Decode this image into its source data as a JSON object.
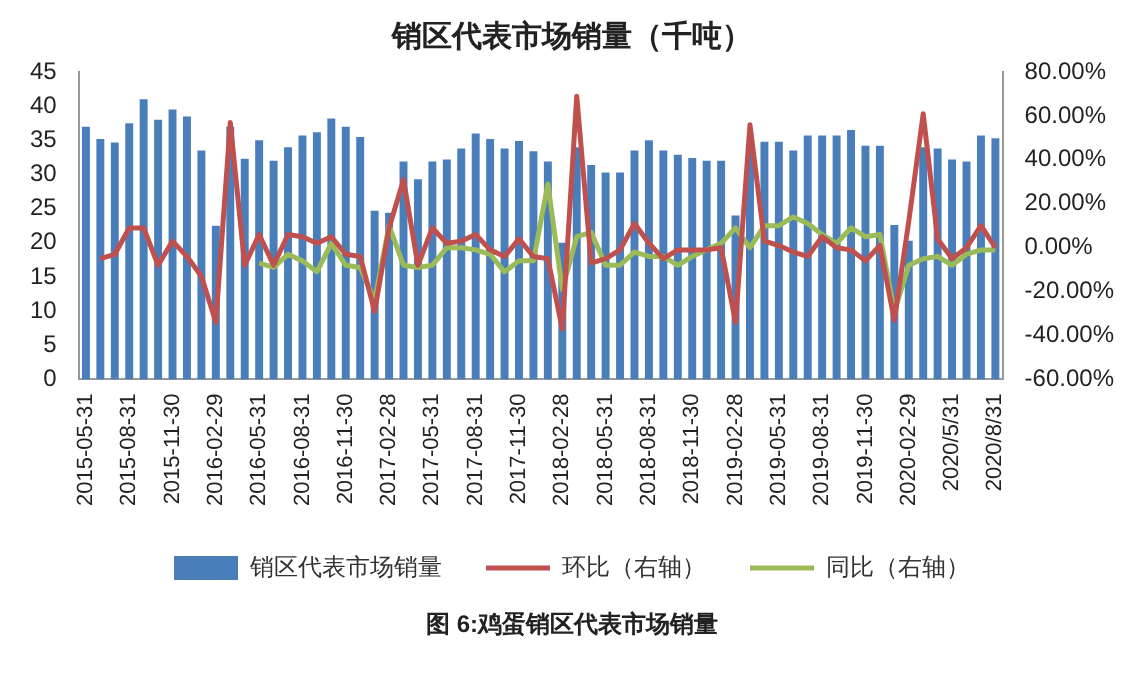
{
  "chart_data": {
    "type": "bar",
    "title": "销区代表市场销量（千吨）",
    "categories": [
      "2015-05-31",
      null,
      null,
      "2015-08-31",
      null,
      null,
      "2015-11-30",
      null,
      null,
      "2016-02-29",
      null,
      null,
      "2016-05-31",
      null,
      null,
      "2016-08-31",
      null,
      null,
      "2016-11-30",
      null,
      null,
      "2017-02-28",
      null,
      null,
      "2017-05-31",
      null,
      null,
      "2017-08-31",
      null,
      null,
      "2017-11-30",
      null,
      null,
      "2018-02-28",
      null,
      null,
      "2018-05-31",
      null,
      null,
      "2018-08-31",
      null,
      null,
      "2018-11-30",
      null,
      null,
      "2019-02-28",
      null,
      null,
      "2019-05-31",
      null,
      null,
      "2019-08-31",
      null,
      null,
      "2019-11-30",
      null,
      null,
      "2020-02-29",
      null,
      null,
      "2020/5/31",
      null,
      null,
      "2020/8/31"
    ],
    "series": [
      {
        "name": "销区代表市场销量",
        "color": "#4a7ebb",
        "values": [
          37,
          35.2,
          34.7,
          37.5,
          41,
          38,
          39.5,
          38.5,
          33.5,
          22.5,
          37,
          32.3,
          35,
          32,
          34,
          35.7,
          36.2,
          38.2,
          37,
          35.5,
          24.7,
          24.4,
          31.9,
          29.3,
          31.9,
          32.2,
          33.8,
          36,
          35.2,
          33.8,
          34.9,
          33.4,
          31.9,
          20,
          34,
          31.4,
          30.3,
          30.3,
          33.5,
          35,
          33.5,
          32.9,
          32.4,
          32,
          32,
          24,
          34,
          34.8,
          34.8,
          33.5,
          35.7,
          35.7,
          35.7,
          36.5,
          34.2,
          34.2,
          22.6,
          20.3,
          34,
          33.8,
          32.2,
          31.9,
          35.7,
          35.3
        ]
      },
      {
        "name": "环比（右轴）",
        "type": "line",
        "axis": "y2",
        "color": "#c0504d",
        "values": [
          null,
          -5,
          -3,
          9,
          9,
          -8,
          3,
          -4,
          -13,
          -34,
          57,
          -8,
          6,
          -8,
          6,
          5,
          2,
          5,
          -3,
          -4,
          -29,
          9,
          31,
          -8,
          9,
          2,
          3,
          6,
          -1,
          -4,
          4,
          -4,
          -5,
          -37,
          69,
          -7,
          -5,
          -1,
          11,
          2,
          -5,
          -1,
          -1,
          -1,
          0,
          -34,
          56,
          3,
          1,
          -2,
          -4,
          5,
          0,
          -1,
          -6,
          1,
          -33,
          12,
          61,
          4,
          -5,
          0,
          10,
          0
        ]
      },
      {
        "name": "同比（右轴）",
        "type": "line",
        "axis": "y2",
        "color": "#9bbb59",
        "values": [
          null,
          null,
          null,
          null,
          null,
          null,
          null,
          null,
          null,
          null,
          null,
          null,
          -7,
          -9,
          -3,
          -6,
          -11,
          2,
          -8,
          -9,
          -24,
          10,
          -8,
          -9,
          -8,
          0,
          0,
          -1,
          -3,
          -11,
          -6,
          -6,
          29,
          -19,
          5,
          7,
          -8,
          -8,
          -2,
          -4,
          -4,
          -8,
          -4,
          -1,
          2,
          9,
          0,
          10,
          10,
          14,
          11,
          6,
          2,
          9,
          5,
          6,
          -29,
          -8,
          -5,
          -4,
          -8,
          -3,
          -1,
          -1
        ]
      }
    ],
    "ylim": [
      0,
      45
    ],
    "yticks": [
      0,
      5,
      10,
      15,
      20,
      25,
      30,
      35,
      40,
      45
    ],
    "y2lim": [
      -60,
      80
    ],
    "y2ticks": [
      {
        "value": -60,
        "label": "-60.00%"
      },
      {
        "value": -40,
        "label": "-40.00%"
      },
      {
        "value": -20,
        "label": "-20.00%"
      },
      {
        "value": 0,
        "label": "0.00%"
      },
      {
        "value": 20,
        "label": "20.00%"
      },
      {
        "value": 40,
        "label": "40.00%"
      },
      {
        "value": 60,
        "label": "60.00%"
      },
      {
        "value": 80,
        "label": "80.00%"
      }
    ],
    "grid": false,
    "legend": "bottom",
    "marker": "none",
    "annotations": [
      "图 6:鸡蛋销区代表市场销量"
    ]
  }
}
